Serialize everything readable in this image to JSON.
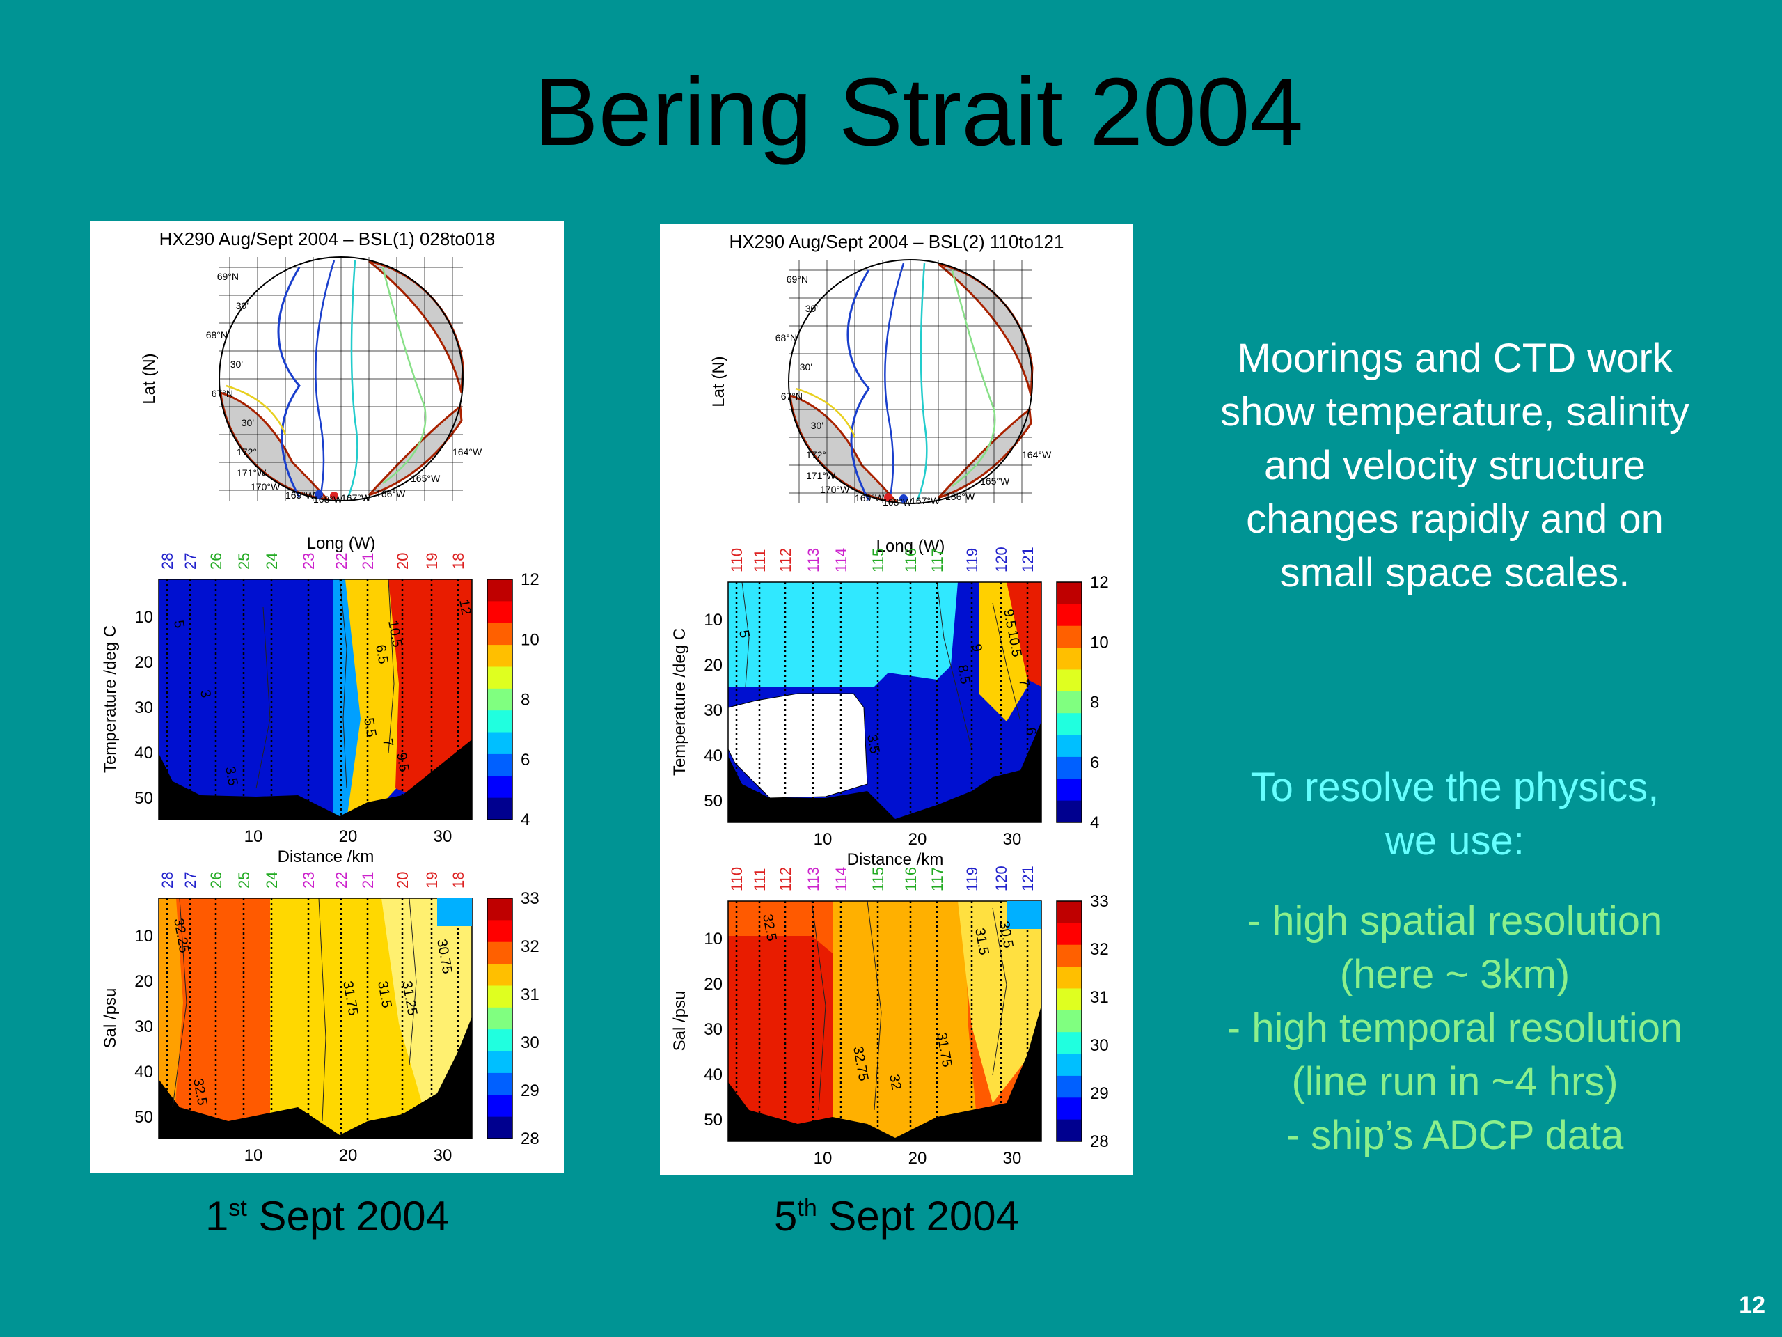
{
  "slide": {
    "title": "Bering Strait 2004",
    "page_number": "12"
  },
  "panels": [
    {
      "plot_title": "HX290 Aug/Sept 2004 – BSL(1) 028to018",
      "map": {
        "ylabel": "Lat (N)",
        "xlabel": "Long (W)",
        "lat_labels": [
          "69°N",
          "30'",
          "68°N",
          "30'",
          "67°N",
          "30'"
        ],
        "long_labels": [
          "172°",
          "171°W",
          "170°W",
          "169°W",
          "168°W",
          "167°W",
          "166°W",
          "165°W",
          "164°W"
        ]
      },
      "stations": [
        {
          "n": "28",
          "color": "#2222cc"
        },
        {
          "n": "27",
          "color": "#2222cc"
        },
        {
          "n": "26",
          "color": "#22aa22"
        },
        {
          "n": "25",
          "color": "#22aa22"
        },
        {
          "n": "24",
          "color": "#22aa22"
        },
        {
          "n": "23",
          "color": "#cc22cc"
        },
        {
          "n": "22",
          "color": "#cc22cc"
        },
        {
          "n": "21",
          "color": "#cc22cc"
        },
        {
          "n": "20",
          "color": "#dd2222"
        },
        {
          "n": "19",
          "color": "#dd2222"
        },
        {
          "n": "18",
          "color": "#dd2222"
        }
      ],
      "temperature": {
        "ylabel": "Temperature /deg C",
        "xlabel": "Distance /km",
        "yticks": [
          "10",
          "20",
          "30",
          "40",
          "50"
        ],
        "xticks": [
          "10",
          "20",
          "30"
        ],
        "colorbar": [
          "12",
          "10",
          "8",
          "6",
          "4"
        ],
        "contour_labels": [
          "5",
          "3",
          "3.5",
          "5.5",
          "6.5",
          "7",
          "9.5",
          "10.5",
          "12"
        ]
      },
      "salinity": {
        "ylabel": "Sal /psu",
        "xlabel": "",
        "yticks": [
          "10",
          "20",
          "30",
          "40",
          "50"
        ],
        "xticks": [
          "10",
          "20",
          "30"
        ],
        "colorbar": [
          "33",
          "32",
          "31",
          "30",
          "29",
          "28"
        ],
        "contour_labels": [
          "32.25",
          "32.5",
          "31.75",
          "31.5",
          "31.25",
          "30.75"
        ]
      },
      "caption_main": "1",
      "caption_sup": "st",
      "caption_rest": " Sept 2004"
    },
    {
      "plot_title": "HX290 Aug/Sept 2004 – BSL(2) 110to121",
      "map": {
        "ylabel": "Lat (N)",
        "xlabel": "Long (W)",
        "lat_labels": [
          "69°N",
          "30'",
          "68°N",
          "30'",
          "67°N",
          "30'"
        ],
        "long_labels": [
          "172°",
          "171°W",
          "170°W",
          "169°W",
          "168°W",
          "167°W",
          "166°W",
          "165°W",
          "164°W"
        ]
      },
      "stations": [
        {
          "n": "110",
          "color": "#dd2222"
        },
        {
          "n": "111",
          "color": "#dd2222"
        },
        {
          "n": "112",
          "color": "#dd2222"
        },
        {
          "n": "113",
          "color": "#cc22cc"
        },
        {
          "n": "114",
          "color": "#cc22cc"
        },
        {
          "n": "115",
          "color": "#22aa22"
        },
        {
          "n": "116",
          "color": "#22aa22"
        },
        {
          "n": "117",
          "color": "#22aa22"
        },
        {
          "n": "119",
          "color": "#2222cc"
        },
        {
          "n": "120",
          "color": "#2222cc"
        },
        {
          "n": "121",
          "color": "#2222cc"
        }
      ],
      "temperature": {
        "ylabel": "Temperature /deg C",
        "xlabel": "Distance /km",
        "yticks": [
          "10",
          "20",
          "30",
          "40",
          "50"
        ],
        "xticks": [
          "10",
          "20",
          "30"
        ],
        "colorbar": [
          "12",
          "10",
          "8",
          "6",
          "4"
        ],
        "contour_labels": [
          "5",
          "3.5",
          "8.5",
          "9",
          "9.5",
          "10.5",
          "7",
          "6"
        ]
      },
      "salinity": {
        "ylabel": "Sal /psu",
        "xlabel": "",
        "yticks": [
          "10",
          "20",
          "30",
          "40",
          "50"
        ],
        "xticks": [
          "10",
          "20",
          "30"
        ],
        "colorbar": [
          "33",
          "32",
          "31",
          "30",
          "29",
          "28"
        ],
        "contour_labels": [
          "32.5",
          "32.75",
          "32",
          "31.75",
          "31.5",
          "30.5"
        ]
      },
      "caption_main": "5",
      "caption_sup": "th",
      "caption_rest": " Sept 2004"
    }
  ],
  "right_text": {
    "para1": [
      "Moorings and CTD work",
      "show temperature, salinity",
      "and velocity structure",
      "changes rapidly and on",
      "small space scales."
    ],
    "para2": [
      "To resolve the physics,",
      "we use:"
    ],
    "para3": [
      "- high spatial resolution",
      "(here ~ 3km)",
      "- high temporal resolution",
      "(line run in ~4 hrs)",
      "- ship’s ADCP data"
    ]
  },
  "colors": {
    "background": "#009494",
    "para1": "#ffffff",
    "para2": "#66ffff",
    "para3": "#8cf08c"
  }
}
